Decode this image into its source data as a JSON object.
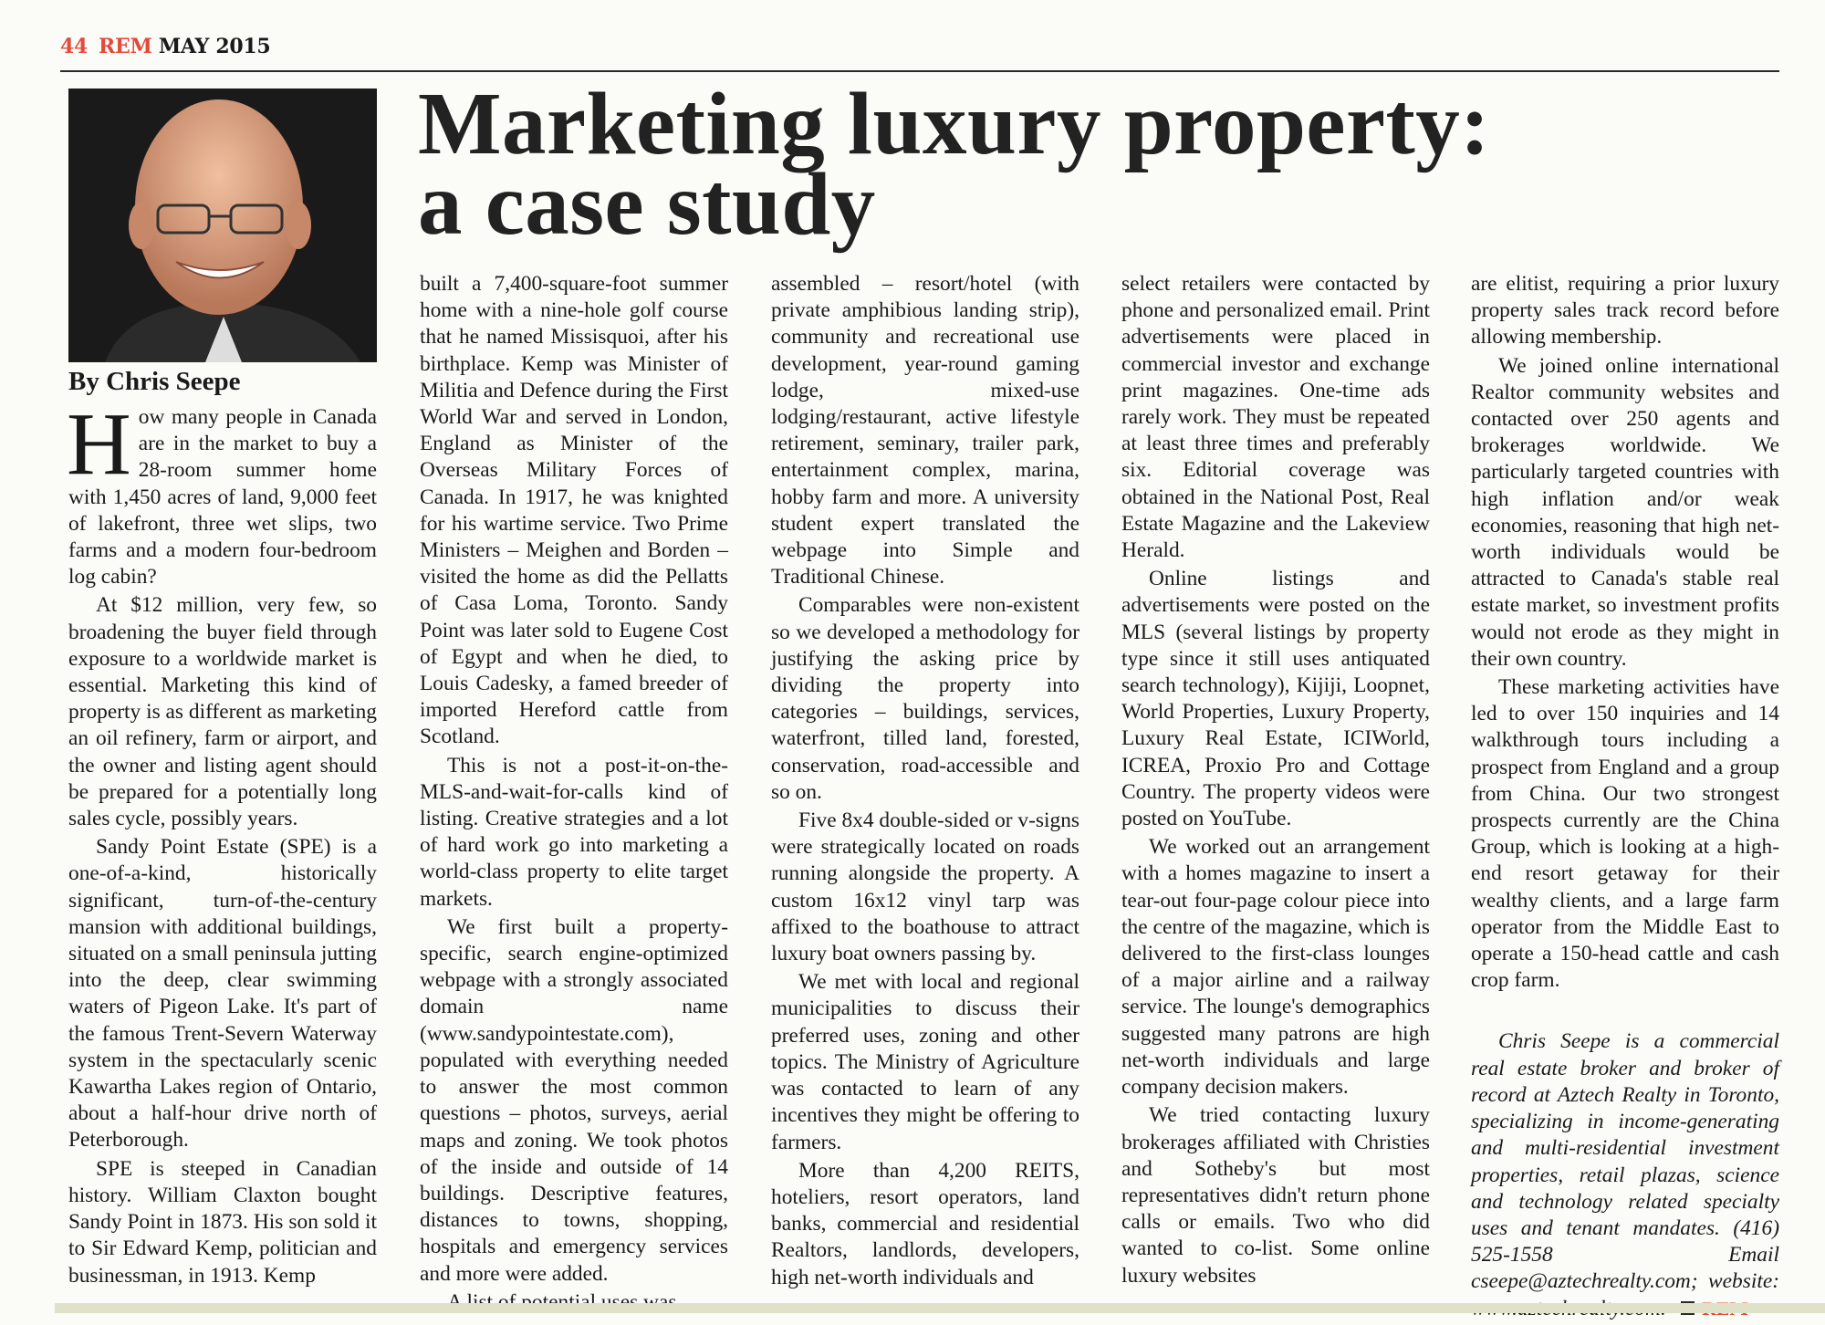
{
  "header": {
    "page_number": "44",
    "magazine": "REM",
    "issue": "MAY 2015"
  },
  "article": {
    "title_line1": "Marketing luxury property:",
    "title_line2": "a case study",
    "byline": "By Chris Seepe",
    "drop_cap": "H",
    "columns": [
      {
        "paragraphs": [
          "ow many people in Canada are in the market to buy a 28-room summer home with 1,450 acres of land, 9,000 feet of lakefront, three wet slips, two farms and a modern four-bedroom log cabin?",
          "At $12 million, very few, so broadening the buyer field through exposure to a worldwide market is essential. Marketing this kind of property is as different as marketing an oil refinery, farm or airport, and the owner and listing agent should be prepared for a potentially long sales cycle, possibly years.",
          "Sandy Point Estate (SPE) is a one-of-a-kind, historically significant, turn-of-the-century mansion with additional buildings, situated on a small peninsula jutting into the deep, clear swimming waters of Pigeon Lake. It's part of the famous Trent-Severn Waterway system in the spectacularly scenic Kawartha Lakes region of Ontario, about a half-hour drive north of Peterborough.",
          "SPE is steeped in Canadian history. William Claxton bought Sandy Point in 1873. His son sold it to Sir Edward Kemp, politician and businessman, in 1913. Kemp"
        ]
      },
      {
        "paragraphs": [
          "built a 7,400-square-foot summer home with a nine-hole golf course that he named Missisquoi, after his birthplace. Kemp was Minister of Militia and Defence during the First World War and served in London, England as Minister of the Overseas Military Forces of Canada. In 1917, he was knighted for his wartime service. Two Prime Ministers – Meighen and Borden – visited the home as did the Pellatts of Casa Loma, Toronto. Sandy Point was later sold to Eugene Cost of Egypt and when he died, to Louis Cadesky, a famed breeder of imported Hereford cattle from Scotland.",
          "This is not a post-it-on-the-MLS-and-wait-for-calls kind of listing. Creative strategies and a lot of hard work go into marketing a world-class property to elite target markets.",
          "We first built a property-specific, search engine-optimized webpage with a strongly associated domain name (www.sandypointestate.com), populated with everything needed to answer the most common questions – photos, surveys, aerial maps and zoning. We took photos of the inside and outside of 14 buildings. Descriptive features, distances to towns, shopping, hospitals and emergency services and more were added.",
          "A list of potential uses was"
        ]
      },
      {
        "paragraphs": [
          "assembled – resort/hotel (with private amphibious landing strip), community and recreational use development, year-round gaming lodge, mixed-use lodging/restaurant, active lifestyle retirement, seminary, trailer park, entertainment complex, marina, hobby farm and more. A university student expert translated the webpage into Simple and Traditional Chinese.",
          "Comparables were non-existent so we developed a methodology for justifying the asking price by dividing the property into categories – buildings, services, waterfront, tilled land, forested, conservation, road-accessible and so on.",
          "Five 8x4 double-sided or v-signs were strategically located on roads running alongside the property. A custom 16x12 vinyl tarp was affixed to the boathouse to attract luxury boat owners passing by.",
          "We met with local and regional municipalities to discuss their preferred uses, zoning and other topics. The Ministry of Agriculture was contacted to learn of any incentives they might be offering to farmers.",
          "More than 4,200 REITS, hoteliers, resort operators, land banks, commercial and residential Realtors, landlords, developers, high net-worth individuals and"
        ]
      },
      {
        "paragraphs": [
          "select retailers were contacted by phone and personalized email. Print advertisements were placed in commercial investor and exchange print magazines. One-time ads rarely work. They must be repeated at least three times and preferably six. Editorial coverage was obtained in the National Post, Real Estate Magazine and the Lakeview Herald.",
          "Online listings and advertisements were posted on the MLS (several listings by property type since it still uses antiquated search technology), Kijiji, Loopnet, World Properties, Luxury Property, Luxury Real Estate, ICIWorld, ICREA, Proxio Pro and Cottage Country. The property videos were posted on YouTube.",
          "We worked out an arrangement with a homes magazine to insert a tear-out four-page colour piece into the centre of the magazine, which is delivered to the first-class lounges of a major airline and a railway service. The lounge's demographics suggested many patrons are high net-worth individuals and large company decision makers.",
          "We tried contacting luxury brokerages affiliated with Christies and Sotheby's but most representatives didn't return phone calls or emails. Two who did wanted to co-list. Some online luxury websites"
        ]
      },
      {
        "paragraphs": [
          "are elitist, requiring a prior luxury property sales track record before allowing membership.",
          "We joined online international Realtor community websites and contacted over 250 agents and brokerages worldwide. We particularly targeted countries with high inflation and/or weak economies, reasoning that high net-worth individuals would be attracted to Canada's stable real estate market, so investment profits would not erode as they might in their own country.",
          "These marketing activities have led to over 150 inquiries and 14 walkthrough tours including a prospect from England and a group from China. Our two strongest prospects currently are the China Group, which is looking at a high-end resort getaway for their wealthy clients, and a large farm operator from the Middle East to operate a 150-head cattle and cash crop farm."
        ]
      }
    ],
    "bio": "Chris Seepe is a commercial real estate broker and broker of record at Aztech Realty in Toronto, specializing in income-generating and multi-residential investment properties, retail plazas, science and technology related specialty uses and tenant mandates. (416) 525-1558 Email cseepe@aztechrealty.com; website: www.aztechrealty.com.",
    "end_tag": "REM"
  },
  "colors": {
    "accent_red": "#e24a3b",
    "text": "#1a1a1a"
  }
}
